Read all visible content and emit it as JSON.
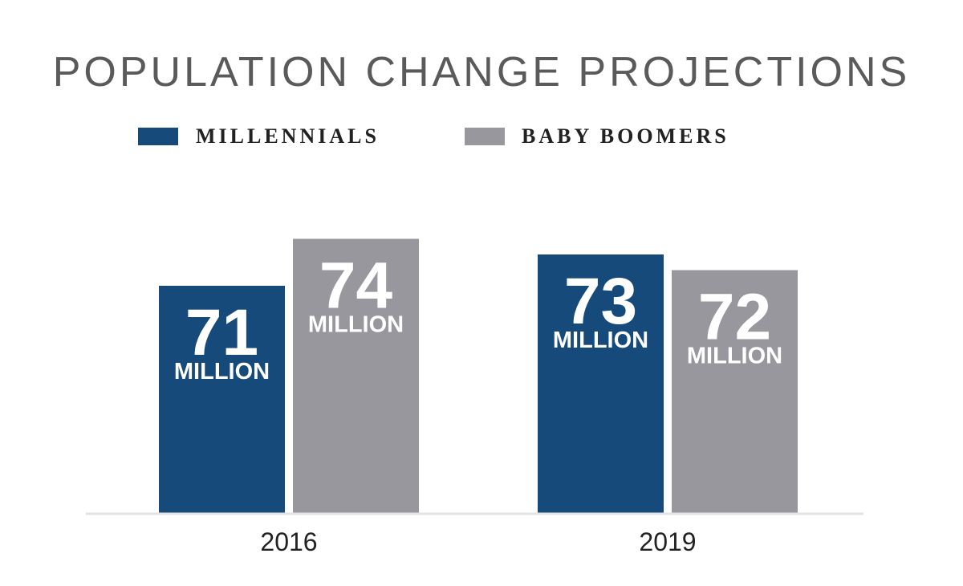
{
  "title": "POPULATION CHANGE PROJECTIONS",
  "legend": [
    {
      "label": "MILLENNIALS",
      "color": "#164a7b"
    },
    {
      "label": "BABY BOOMERS",
      "color": "#97979d"
    }
  ],
  "chart_data": {
    "type": "bar",
    "title": "POPULATION CHANGE PROJECTIONS",
    "categories": [
      "2016",
      "2019"
    ],
    "series": [
      {
        "name": "MILLENNIALS",
        "values": [
          71,
          73
        ],
        "color": "#164a7b"
      },
      {
        "name": "BABY BOOMERS",
        "values": [
          74,
          72
        ],
        "color": "#97979d"
      }
    ],
    "value_unit": "MILLION",
    "xlabel": "",
    "ylabel": "",
    "grid": false,
    "legend_position": "top-center",
    "baseline_color": "#e3e3e6"
  }
}
